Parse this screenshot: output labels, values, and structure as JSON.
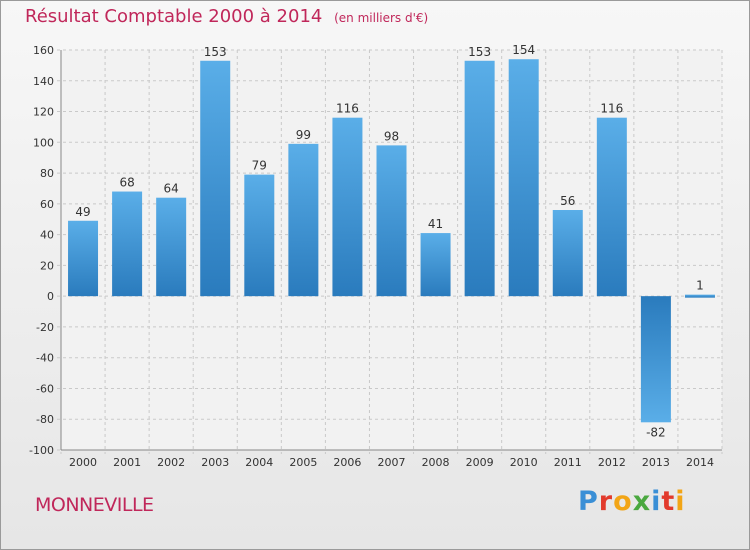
{
  "chart_data": {
    "type": "bar",
    "title": "Résultat Comptable 2000 à 2014",
    "unit_note": "(en milliers d'€)",
    "categories": [
      "2000",
      "2001",
      "2002",
      "2003",
      "2004",
      "2005",
      "2006",
      "2007",
      "2008",
      "2009",
      "2010",
      "2011",
      "2012",
      "2013",
      "2014"
    ],
    "values": [
      49,
      68,
      64,
      153,
      79,
      99,
      116,
      98,
      41,
      153,
      154,
      56,
      116,
      -82,
      1
    ],
    "ylim": [
      -100,
      160
    ],
    "yticks": [
      -100,
      -80,
      -60,
      -40,
      -20,
      0,
      20,
      40,
      60,
      80,
      100,
      120,
      140,
      160
    ],
    "xlabel": "",
    "ylabel": "",
    "grid": true,
    "legend": "none"
  },
  "commune": "MONNEVILLE",
  "brand": {
    "letters": [
      "P",
      "r",
      "o",
      "x",
      "i",
      "t",
      "i"
    ],
    "colors": [
      "#3a8fd6",
      "#e23a2c",
      "#f2a516",
      "#4aa83f",
      "#3a8fd6",
      "#e23a2c",
      "#f2a516"
    ]
  },
  "colors": {
    "bar_light": "#5aaee8",
    "bar_dark": "#2a7bbd",
    "title": "#c0275a"
  }
}
